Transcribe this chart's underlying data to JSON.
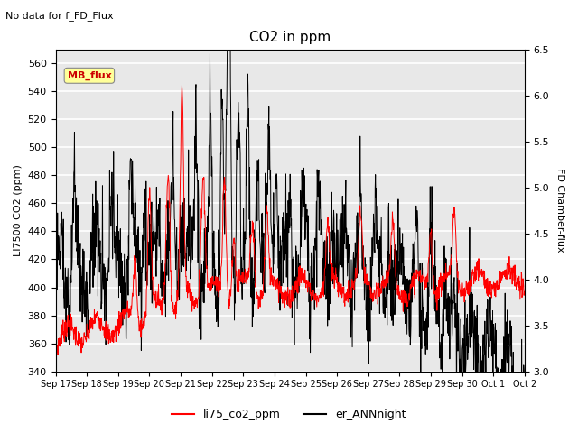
{
  "title": "CO2 in ppm",
  "suptitle": "No data for f_FD_Flux",
  "ylabel_left": "LI7500 CO2 (ppm)",
  "ylabel_right": "FD Chamber-flux",
  "ylim_left": [
    340,
    570
  ],
  "ylim_right": [
    3.0,
    6.5
  ],
  "yticks_left": [
    340,
    360,
    380,
    400,
    420,
    440,
    460,
    480,
    500,
    520,
    540,
    560
  ],
  "yticks_right": [
    3.0,
    3.5,
    4.0,
    4.5,
    5.0,
    5.5,
    6.0,
    6.5
  ],
  "legend_labels": [
    "li75_co2_ppm",
    "er_ANNnight"
  ],
  "legend_colors": [
    "red",
    "black"
  ],
  "mb_flux_box_color": "#ffff99",
  "mb_flux_text_color": "#cc0000",
  "background_color": "#e8e8e8",
  "line_color_red": "#ff0000",
  "line_color_black": "#000000"
}
